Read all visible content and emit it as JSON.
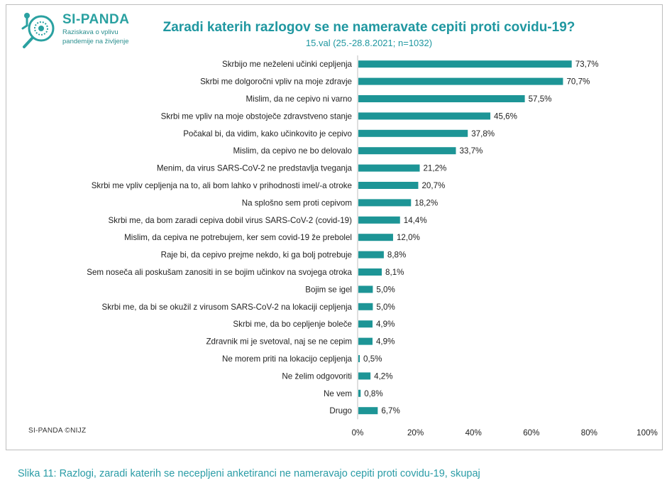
{
  "brand": {
    "name": "SI-PANDA",
    "tagline_line1": "Raziskava o vplivu",
    "tagline_line2": "pandemije na življenje",
    "logo_color": "#2aa1a1"
  },
  "credit": "SI-PANDA ©NIJZ",
  "caption": "Slika 11: Razlogi, zaradi katerih se necepljeni anketiranci ne nameravajo cepiti proti covidu-19, skupaj",
  "chart_data": {
    "type": "bar",
    "orientation": "horizontal",
    "title": "Zaradi katerih razlogov se ne nameravate cepiti proti covidu-19?",
    "subtitle": "15.val (25.-28.8.2021; n=1032)",
    "bar_color": "#1d9596",
    "xlim": [
      0,
      100
    ],
    "xticks": [
      "0%",
      "20%",
      "40%",
      "60%",
      "80%",
      "100%"
    ],
    "grid": false,
    "categories": [
      "Skrbijo me neželeni učinki cepljenja",
      "Skrbi me dolgoročni vpliv na moje zdravje",
      "Mislim, da ne cepivo ni varno",
      "Skrbi me vpliv na moje obstoječe zdravstveno stanje",
      "Počakal bi, da vidim, kako učinkovito je cepivo",
      "Mislim, da cepivo ne bo delovalo",
      "Menim, da virus SARS-CoV-2 ne predstavlja tveganja",
      "Skrbi me vpliv cepljenja na to, ali bom lahko v prihodnosti imel/-a otroke",
      "Na splošno sem proti cepivom",
      "Skrbi me, da bom zaradi cepiva dobil virus SARS-CoV-2 (covid-19)",
      "Mislim, da cepiva ne potrebujem, ker sem covid-19 že prebolel",
      "Raje bi, da cepivo prejme nekdo, ki ga bolj potrebuje",
      "Sem noseča ali poskušam zanositi in se bojim učinkov na svojega otroka",
      "Bojim se igel",
      "Skrbi me, da bi se okužil z virusom SARS-CoV-2 na lokaciji cepljenja",
      "Skrbi me, da bo cepljenje boleče",
      "Zdravnik mi je svetoval, naj se ne cepim",
      "Ne morem priti na lokacijo cepljenja",
      "Ne želim odgovoriti",
      "Ne vem",
      "Drugo"
    ],
    "values": [
      73.7,
      70.7,
      57.5,
      45.6,
      37.8,
      33.7,
      21.2,
      20.7,
      18.2,
      14.4,
      12.0,
      8.8,
      8.1,
      5.0,
      5.0,
      4.9,
      4.9,
      0.5,
      4.2,
      0.8,
      6.7
    ],
    "value_labels": [
      "73,7%",
      "70,7%",
      "57,5%",
      "45,6%",
      "37,8%",
      "33,7%",
      "21,2%",
      "20,7%",
      "18,2%",
      "14,4%",
      "12,0%",
      "8,8%",
      "8,1%",
      "5,0%",
      "5,0%",
      "4,9%",
      "4,9%",
      "0,5%",
      "4,2%",
      "0,8%",
      "6,7%"
    ]
  }
}
